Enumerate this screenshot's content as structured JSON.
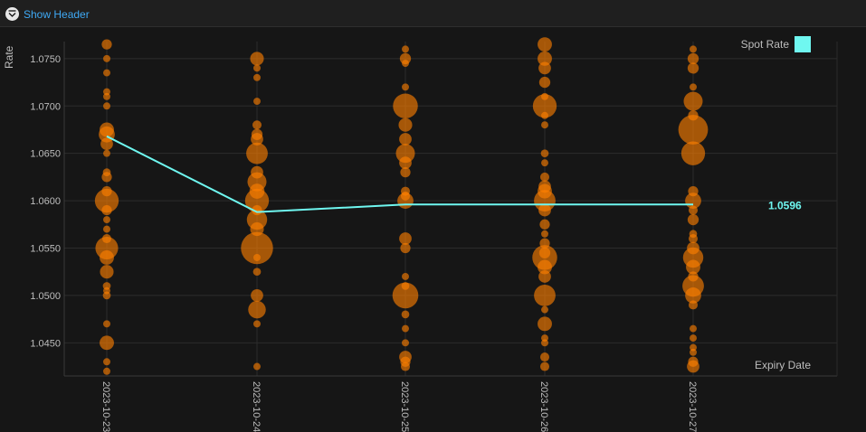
{
  "header": {
    "toggle_label": "Show Header",
    "toggle_icon": "collapse-chevron-icon"
  },
  "colors": {
    "bubble": "#ff8000",
    "spot_line": "#6ff7f0",
    "grid": "#2c2c2c",
    "background": "#161616"
  },
  "chart_data": {
    "type": "scatter",
    "title": "",
    "xlabel": "Expiry Date",
    "ylabel": "Rate",
    "categories": [
      "2023-10-23",
      "2023-10-24",
      "2023-10-25",
      "2023-10-26",
      "2023-10-27"
    ],
    "yticks": [
      "1.0450",
      "1.0500",
      "1.0550",
      "1.0600",
      "1.0650",
      "1.0700",
      "1.0750"
    ],
    "ylim": [
      1.0415,
      1.0768
    ],
    "grid": true,
    "legend": {
      "label": "Spot Rate",
      "placement": "top-right"
    },
    "spot_rate": {
      "name": "Spot Rate",
      "values": [
        1.0668,
        1.0588,
        1.0596,
        1.0596,
        1.0596
      ],
      "last_label": "1.0596"
    },
    "bubble_series": [
      {
        "category": "2023-10-23",
        "points": [
          [
            1.0765,
            1
          ],
          [
            1.075,
            0.5
          ],
          [
            1.0735,
            0.5
          ],
          [
            1.0715,
            0.5
          ],
          [
            1.071,
            0.5
          ],
          [
            1.07,
            0.5
          ],
          [
            1.0675,
            2
          ],
          [
            1.067,
            2.5
          ],
          [
            1.066,
            1.5
          ],
          [
            1.065,
            0.5
          ],
          [
            1.063,
            0.6
          ],
          [
            1.0625,
            1
          ],
          [
            1.061,
            1
          ],
          [
            1.06,
            5.5
          ],
          [
            1.059,
            1
          ],
          [
            1.058,
            0.5
          ],
          [
            1.057,
            0.5
          ],
          [
            1.056,
            0.8
          ],
          [
            1.055,
            5
          ],
          [
            1.054,
            2
          ],
          [
            1.0525,
            1.8
          ],
          [
            1.051,
            0.6
          ],
          [
            1.0505,
            0.5
          ],
          [
            1.05,
            0.6
          ],
          [
            1.047,
            0.5
          ],
          [
            1.045,
            2
          ],
          [
            1.043,
            0.5
          ],
          [
            1.042,
            0.5
          ]
        ]
      },
      {
        "category": "2023-10-24",
        "points": [
          [
            1.075,
            1.8
          ],
          [
            1.074,
            0.5
          ],
          [
            1.073,
            0.5
          ],
          [
            1.0705,
            0.5
          ],
          [
            1.068,
            0.8
          ],
          [
            1.067,
            1.2
          ],
          [
            1.0665,
            1.5
          ],
          [
            1.065,
            4.5
          ],
          [
            1.063,
            1.5
          ],
          [
            1.062,
            3.5
          ],
          [
            1.06,
            5.5
          ],
          [
            1.061,
            2.2
          ],
          [
            1.059,
            1
          ],
          [
            1.058,
            4
          ],
          [
            1.057,
            1.8
          ],
          [
            1.055,
            10
          ],
          [
            1.054,
            0.5
          ],
          [
            1.0525,
            0.6
          ],
          [
            1.05,
            1.5
          ],
          [
            1.0485,
            3
          ],
          [
            1.047,
            0.5
          ],
          [
            1.0425,
            0.5
          ]
        ]
      },
      {
        "category": "2023-10-25",
        "points": [
          [
            1.076,
            0.5
          ],
          [
            1.075,
            1.2
          ],
          [
            1.0745,
            0.5
          ],
          [
            1.072,
            0.5
          ],
          [
            1.07,
            6
          ],
          [
            1.068,
            1.8
          ],
          [
            1.0665,
            1.5
          ],
          [
            1.065,
            3.5
          ],
          [
            1.064,
            1.5
          ],
          [
            1.063,
            1
          ],
          [
            1.061,
            0.8
          ],
          [
            1.0605,
            0.8
          ],
          [
            1.06,
            2.5
          ],
          [
            1.056,
            1.5
          ],
          [
            1.055,
            1
          ],
          [
            1.052,
            0.5
          ],
          [
            1.051,
            0.6
          ],
          [
            1.05,
            6.5
          ],
          [
            1.048,
            0.6
          ],
          [
            1.0465,
            0.5
          ],
          [
            1.045,
            0.5
          ],
          [
            1.0435,
            1.5
          ],
          [
            1.043,
            1
          ],
          [
            1.0425,
            0.8
          ]
        ]
      },
      {
        "category": "2023-10-26",
        "points": [
          [
            1.0765,
            2
          ],
          [
            1.075,
            2
          ],
          [
            1.074,
            1.5
          ],
          [
            1.0725,
            1.2
          ],
          [
            1.071,
            0.5
          ],
          [
            1.07,
            5.5
          ],
          [
            1.069,
            0.5
          ],
          [
            1.068,
            0.5
          ],
          [
            1.065,
            0.6
          ],
          [
            1.064,
            0.5
          ],
          [
            1.0625,
            0.8
          ],
          [
            1.0615,
            1.5
          ],
          [
            1.061,
            2
          ],
          [
            1.06,
            4.5
          ],
          [
            1.059,
            1.5
          ],
          [
            1.0575,
            1
          ],
          [
            1.0565,
            0.5
          ],
          [
            1.0555,
            1
          ],
          [
            1.0545,
            1.2
          ],
          [
            1.054,
            6
          ],
          [
            1.053,
            2
          ],
          [
            1.052,
            1.5
          ],
          [
            1.05,
            4.5
          ],
          [
            1.0485,
            0.5
          ],
          [
            1.047,
            2
          ],
          [
            1.0455,
            0.5
          ],
          [
            1.045,
            0.5
          ],
          [
            1.0435,
            0.8
          ],
          [
            1.0425,
            0.8
          ]
        ]
      },
      {
        "category": "2023-10-27",
        "points": [
          [
            1.076,
            0.5
          ],
          [
            1.075,
            1.2
          ],
          [
            1.074,
            1.2
          ],
          [
            1.072,
            0.5
          ],
          [
            1.0705,
            3.5
          ],
          [
            1.069,
            1
          ],
          [
            1.0675,
            8.5
          ],
          [
            1.065,
            5.5
          ],
          [
            1.061,
            1
          ],
          [
            1.06,
            2.5
          ],
          [
            1.059,
            0.8
          ],
          [
            1.058,
            1.2
          ],
          [
            1.0565,
            0.6
          ],
          [
            1.056,
            0.8
          ],
          [
            1.055,
            1.5
          ],
          [
            1.054,
            4
          ],
          [
            1.053,
            2
          ],
          [
            1.052,
            1
          ],
          [
            1.051,
            4.5
          ],
          [
            1.05,
            2.5
          ],
          [
            1.049,
            0.8
          ],
          [
            1.0465,
            0.5
          ],
          [
            1.0455,
            0.5
          ],
          [
            1.0445,
            0.5
          ],
          [
            1.044,
            0.5
          ],
          [
            1.043,
            1
          ],
          [
            1.0425,
            1.5
          ]
        ]
      }
    ]
  }
}
